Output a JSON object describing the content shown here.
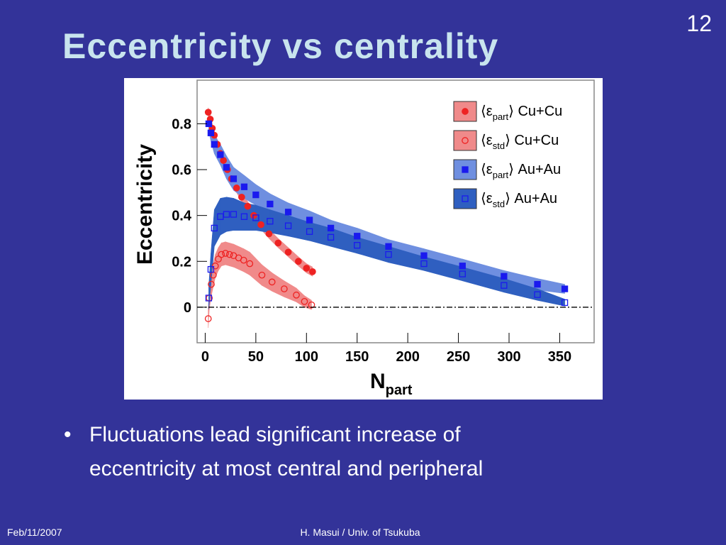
{
  "slide": {
    "title": "Eccentricity vs centrality",
    "page_number": "12",
    "bullet_lines": [
      "Fluctuations lead significant increase of",
      "eccentricity at most central and peripheral"
    ],
    "footer_left": "Feb/11/2007",
    "footer_center": "H. Masui / Univ. of Tsukuba"
  },
  "chart_data": {
    "type": "scatter",
    "x_label": "Npart",
    "y_label": "Eccentricity",
    "xlim": [
      -8,
      384
    ],
    "ylim": [
      -0.155,
      0.99
    ],
    "xticks": [
      0,
      50,
      100,
      150,
      200,
      250,
      300,
      350
    ],
    "yticks": [
      0,
      0.2,
      0.4,
      0.6,
      0.8
    ],
    "legend": "upper right",
    "series": [
      {
        "name": "⟨εpart⟩ Cu+Cu",
        "color": "#ee2222",
        "band_color": "#f08a8a",
        "marker": "circle",
        "filled": true,
        "x": [
          3,
          5,
          7,
          9,
          12,
          15,
          18,
          22,
          26,
          31,
          36,
          42,
          48,
          55,
          63,
          72,
          82,
          92,
          100,
          106
        ],
        "values": [
          0.85,
          0.82,
          0.78,
          0.75,
          0.71,
          0.67,
          0.64,
          0.6,
          0.56,
          0.52,
          0.48,
          0.44,
          0.4,
          0.36,
          0.32,
          0.28,
          0.24,
          0.2,
          0.17,
          0.155
        ],
        "errors": [
          0.02,
          0.02,
          0.02,
          0.02,
          0.02,
          0.02,
          0.02,
          0.02,
          0.02,
          0.02,
          0.02,
          0.02,
          0.02,
          0.02,
          0.02,
          0.02,
          0.02,
          0.02,
          0.02,
          0.02
        ]
      },
      {
        "name": "⟨εstd⟩ Cu+Cu",
        "color": "#ee2222",
        "band_color": "#f08a8a",
        "marker": "circle",
        "filled": false,
        "x": [
          3,
          4,
          6,
          8,
          10,
          13,
          16,
          20,
          24,
          28,
          33,
          38,
          44,
          56,
          66,
          78,
          90,
          98,
          105
        ],
        "values": [
          -0.05,
          0.04,
          0.1,
          0.14,
          0.18,
          0.21,
          0.23,
          0.235,
          0.23,
          0.225,
          0.215,
          0.205,
          0.19,
          0.14,
          0.11,
          0.08,
          0.053,
          0.025,
          0.01
        ],
        "errors": [
          0.04,
          0.05,
          0.05,
          0.05,
          0.05,
          0.05,
          0.05,
          0.05,
          0.05,
          0.05,
          0.05,
          0.05,
          0.05,
          0.045,
          0.04,
          0.035,
          0.03,
          0.025,
          0.02
        ]
      },
      {
        "name": "⟨εpart⟩ Au+Au",
        "color": "#1a1aee",
        "band_color": "#6f8fe0",
        "marker": "square",
        "filled": true,
        "x": [
          3.5,
          5.6,
          9,
          15,
          21,
          28,
          38.5,
          50,
          64,
          82,
          103,
          124,
          150,
          181,
          216,
          254,
          295,
          328,
          355
        ],
        "values": [
          0.8,
          0.76,
          0.71,
          0.665,
          0.61,
          0.56,
          0.525,
          0.49,
          0.45,
          0.415,
          0.38,
          0.345,
          0.31,
          0.265,
          0.225,
          0.18,
          0.135,
          0.1,
          0.08
        ],
        "errors": [
          0.03,
          0.035,
          0.04,
          0.045,
          0.05,
          0.05,
          0.05,
          0.045,
          0.045,
          0.04,
          0.04,
          0.035,
          0.035,
          0.03,
          0.03,
          0.03,
          0.025,
          0.025,
          0.02
        ]
      },
      {
        "name": "⟨εstd⟩ Au+Au",
        "color": "#1a1aee",
        "band_color": "#2f5fc0",
        "marker": "square",
        "filled": false,
        "x": [
          3.5,
          5.6,
          9,
          15,
          21,
          28,
          38.5,
          50,
          64,
          82,
          103,
          124,
          150,
          181,
          216,
          254,
          295,
          328,
          355
        ],
        "values": [
          0.04,
          0.165,
          0.345,
          0.395,
          0.405,
          0.405,
          0.395,
          0.39,
          0.375,
          0.355,
          0.33,
          0.305,
          0.27,
          0.23,
          0.19,
          0.145,
          0.095,
          0.055,
          0.02
        ],
        "errors": [
          0.05,
          0.07,
          0.08,
          0.08,
          0.075,
          0.07,
          0.06,
          0.055,
          0.05,
          0.045,
          0.04,
          0.04,
          0.035,
          0.035,
          0.03,
          0.03,
          0.03,
          0.025,
          0.015
        ]
      }
    ]
  }
}
